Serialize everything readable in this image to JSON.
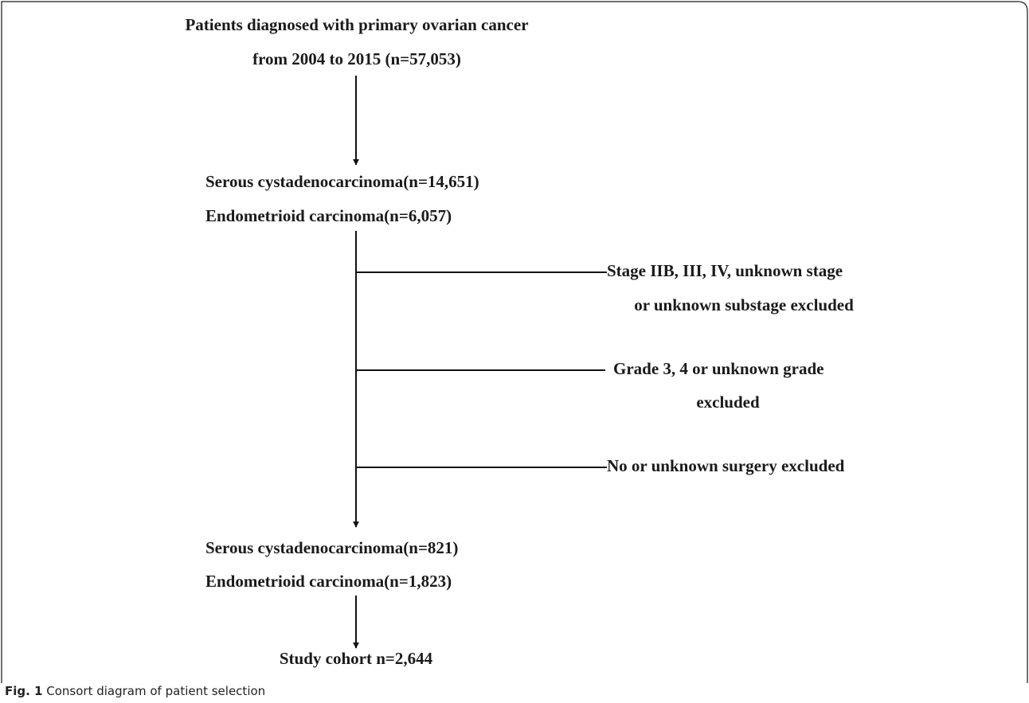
{
  "nodes": [
    {
      "lines": [
        "Patients diagnosed with primary ovarian cancer",
        "from 2004 to 2015 (n=57,053)"
      ]
    },
    {
      "lines": [
        "Serous cystadenocarcinoma(n=14,651)",
        "Endometrioid carcinoma(n=6,057)"
      ]
    },
    {
      "lines": [
        "Stage IIB, III, IV, unknown stage",
        "or unknown substage excluded"
      ]
    },
    {
      "lines": [
        "Grade 3, 4 or unknown grade",
        "excluded"
      ]
    },
    {
      "lines": [
        "No or unknown surgery excluded"
      ]
    },
    {
      "lines": [
        "Serous cystadenocarcinoma(n=821)",
        "Endometrioid carcinoma(n=1,823)"
      ]
    },
    {
      "lines": [
        "Study cohort n=2,644"
      ]
    }
  ],
  "caption": {
    "label": "Fig. 1",
    "text": "Consort diagram of patient selection"
  }
}
